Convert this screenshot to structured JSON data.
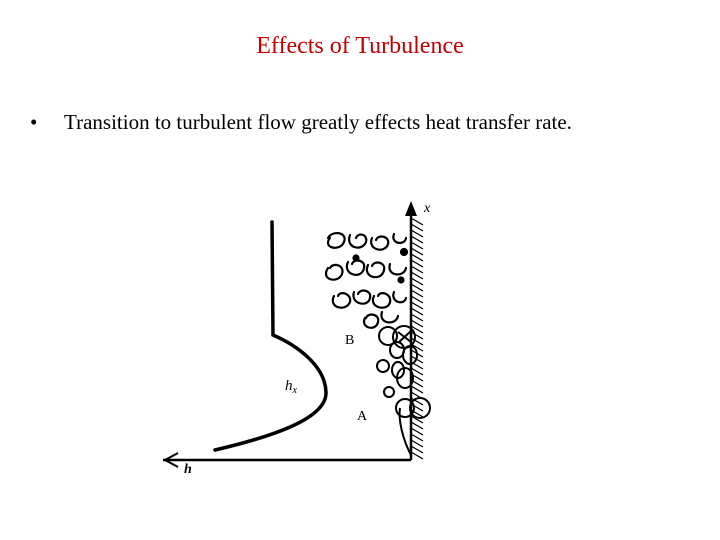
{
  "slide": {
    "title": "Effects of Turbulence",
    "bullets": [
      "Transition to turbulent flow greatly effects heat transfer rate."
    ]
  },
  "colors": {
    "title": "#c00000",
    "text": "#000000"
  },
  "diagram": {
    "labels": {
      "x_axis": "x",
      "point_b": "B",
      "point_a": "A",
      "curve": "h",
      "curve_subscript": "x",
      "h_axis": "h"
    }
  }
}
